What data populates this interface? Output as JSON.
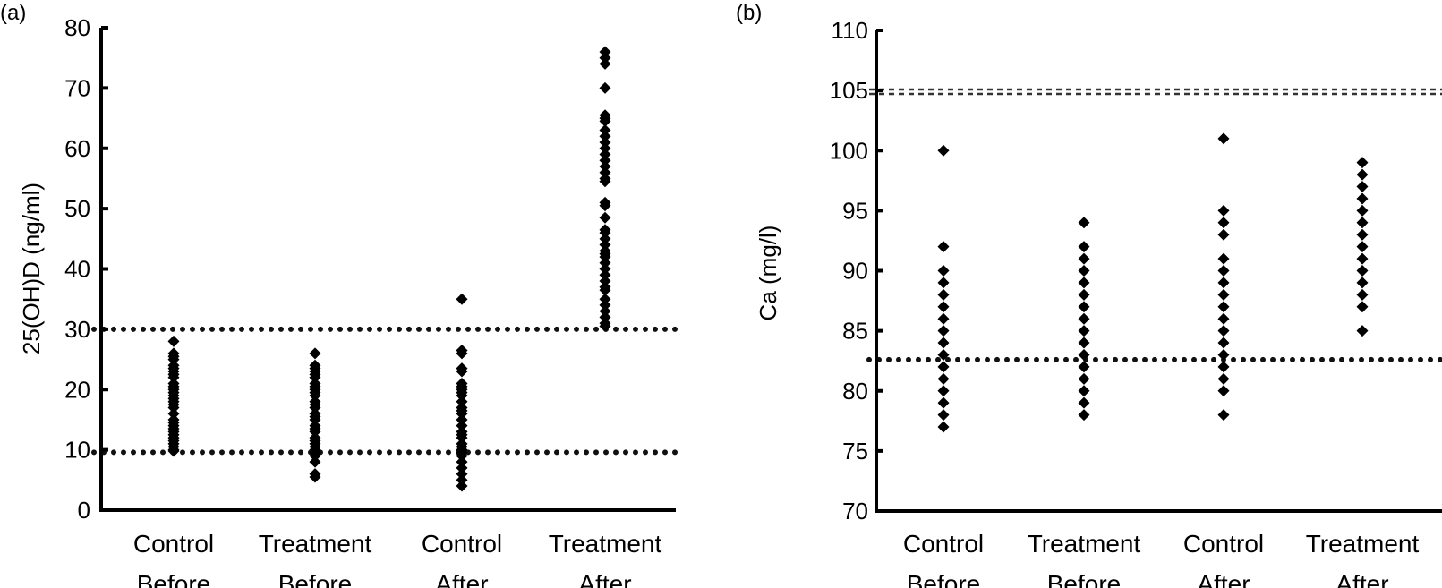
{
  "chart_data": [
    {
      "panel_label": "(a)",
      "type": "scatter",
      "ylabel": "25(OH)D (ng/ml)",
      "ylim": [
        0,
        80
      ],
      "yticks": [
        0,
        10,
        20,
        30,
        40,
        50,
        60,
        70,
        80
      ],
      "categories": [
        [
          "Control",
          "Before"
        ],
        [
          "Treatment",
          "Before"
        ],
        [
          "Control",
          "After"
        ],
        [
          "Treatment",
          "After"
        ]
      ],
      "reference_lines": [
        30,
        9.6
      ],
      "grid": false,
      "series": [
        {
          "values": [
            28,
            26,
            25.5,
            25,
            24,
            23.5,
            23,
            22.5,
            22,
            21,
            20.5,
            20,
            19.5,
            19,
            18.5,
            18,
            17.5,
            17,
            16,
            15,
            14.5,
            14,
            13.5,
            13,
            12.5,
            12,
            11.5,
            11,
            10.5,
            10,
            9.8
          ]
        },
        {
          "values": [
            26,
            24,
            23.5,
            23,
            22.5,
            22,
            21,
            20.5,
            20,
            19.5,
            19,
            18,
            17.5,
            17,
            16,
            15.5,
            15,
            14,
            13.5,
            13,
            12,
            11.5,
            11,
            10.5,
            10,
            9.5,
            9,
            8,
            6,
            5.5
          ]
        },
        {
          "values": [
            35,
            26.5,
            26,
            23.5,
            23,
            21,
            20.5,
            20,
            19.5,
            19,
            18,
            17,
            16.5,
            16,
            15,
            14,
            13,
            12.5,
            12,
            11,
            10.5,
            10,
            9.5,
            9,
            8,
            7,
            6,
            5,
            4
          ]
        },
        {
          "values": [
            76,
            75,
            74,
            70,
            65.5,
            65,
            64.5,
            63,
            62,
            61,
            60,
            59,
            58,
            57,
            56,
            55,
            54.5,
            51,
            50.5,
            48.5,
            46.5,
            46,
            45,
            44,
            43,
            42.5,
            42,
            41,
            40,
            39,
            38,
            37,
            36.5,
            35,
            34,
            33,
            32,
            31,
            30.5
          ]
        }
      ]
    },
    {
      "panel_label": "(b)",
      "type": "scatter",
      "ylabel": "Ca (mg/l)",
      "ylim": [
        70,
        110
      ],
      "yticks": [
        70,
        75,
        80,
        85,
        90,
        95,
        100,
        105,
        110
      ],
      "categories": [
        [
          "Control",
          "Before"
        ],
        [
          "Treatment",
          "Before"
        ],
        [
          "Control",
          "After"
        ],
        [
          "Treatment",
          "After"
        ]
      ],
      "reference_lines": [
        104.9,
        82.6
      ],
      "grid": false,
      "series": [
        {
          "values": [
            100,
            92,
            90,
            89,
            88,
            87,
            86,
            85,
            84,
            83,
            82,
            81,
            80,
            79,
            78,
            77
          ]
        },
        {
          "values": [
            94,
            92,
            91,
            90,
            89,
            88,
            87,
            86,
            85,
            84,
            83,
            82,
            81,
            80,
            79,
            78
          ]
        },
        {
          "values": [
            101,
            95,
            94,
            93,
            91,
            90,
            89,
            88,
            87,
            86,
            85,
            84,
            83,
            82,
            81,
            80,
            78
          ]
        },
        {
          "values": [
            99,
            98,
            97,
            96,
            95,
            94,
            93,
            92,
            91,
            90,
            89,
            88,
            87,
            85
          ]
        }
      ]
    }
  ]
}
